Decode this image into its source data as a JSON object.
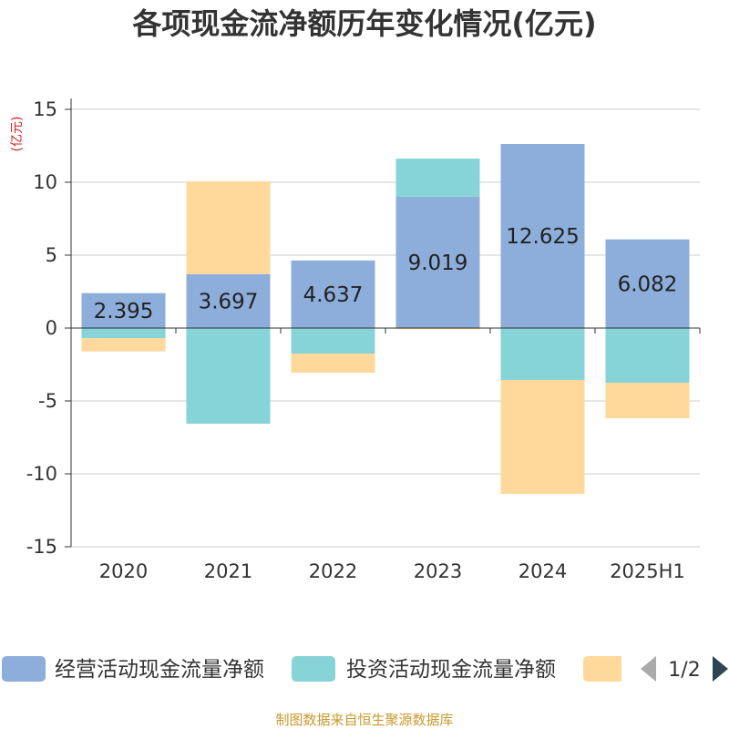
{
  "footer": "制图数据来自恒生聚源数据库",
  "legend": {
    "position": "bottom",
    "page": "1/2"
  },
  "chart_data": {
    "type": "bar",
    "stacked": true,
    "title": "各项现金流净额历年变化情况(亿元)",
    "ylabel": "(亿元)",
    "categories": [
      "2020",
      "2021",
      "2022",
      "2023",
      "2024",
      "2025H1"
    ],
    "ylim": [
      -15,
      15
    ],
    "yticks": [
      15,
      10,
      5,
      0,
      -5,
      -10,
      -15
    ],
    "grid": true,
    "legend_position": "bottom",
    "series": [
      {
        "name": "经营活动现金流量净额",
        "color": "#8DADDA",
        "data_labels": true,
        "values": [
          2.395,
          3.697,
          4.637,
          9.019,
          12.625,
          6.082
        ]
      },
      {
        "name": "投资活动现金流量净额",
        "color": "#86D4D7",
        "values": [
          -0.7,
          -6.56,
          -1.75,
          2.6,
          -3.56,
          -3.75
        ]
      },
      {
        "color": "#FED99B",
        "values": [
          -0.9,
          6.37,
          -1.31,
          -0.08,
          -7.81,
          -2.44
        ]
      }
    ]
  }
}
